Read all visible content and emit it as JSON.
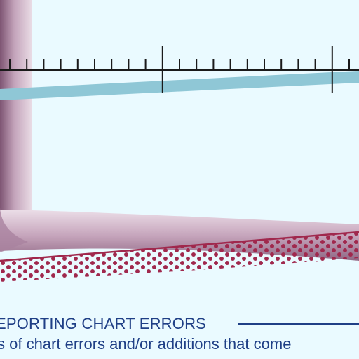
{
  "heading": "EPORTING CHART ERRORS",
  "body_line": "s of chart errors and/or additions that come",
  "colors": {
    "background": "#eafaff",
    "frame": "#b893ad",
    "band": "#8fc7d6",
    "ruler": "#1a1a1a",
    "dots": "#a0284d",
    "text": "#1f3f86"
  }
}
